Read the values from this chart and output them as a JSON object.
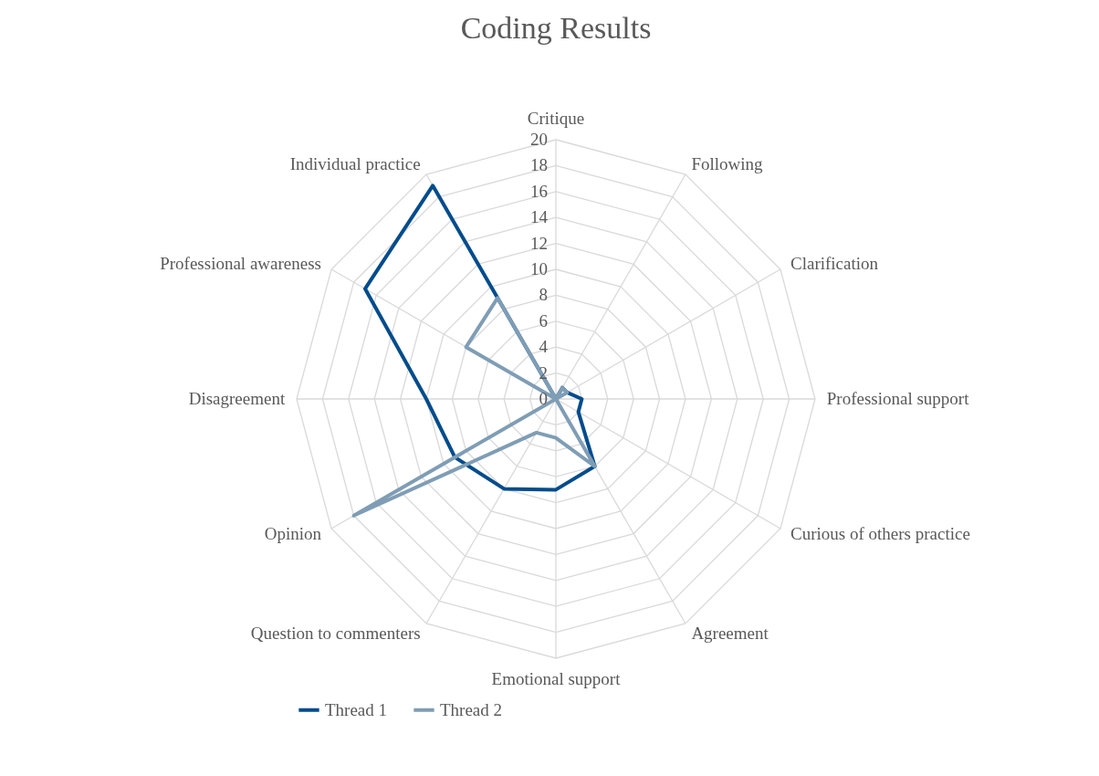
{
  "chart_data": {
    "type": "radar",
    "title": "Coding Results",
    "categories": [
      "Critique",
      "Following",
      "Clarification",
      "Professional support",
      "Curious of others practice",
      "Agreement",
      "Emotional support",
      "Question to commenters",
      "Opinion",
      "Disagreement",
      "Professional awareness",
      "Individual practice"
    ],
    "series": [
      {
        "name": "Thread 1",
        "color": "#004c8c",
        "values": [
          0,
          1,
          1,
          2,
          2,
          6,
          7,
          8,
          9,
          10,
          17,
          19
        ]
      },
      {
        "name": "Thread 2",
        "color": "#7f9db5",
        "values": [
          0,
          1,
          1,
          0,
          0,
          6,
          3,
          3,
          18,
          0,
          8,
          9
        ]
      }
    ],
    "ylim": [
      0,
      20
    ],
    "yticks": [
      0,
      2,
      4,
      6,
      8,
      10,
      12,
      14,
      16,
      18,
      20
    ],
    "grid": true,
    "legend": "bottom"
  }
}
